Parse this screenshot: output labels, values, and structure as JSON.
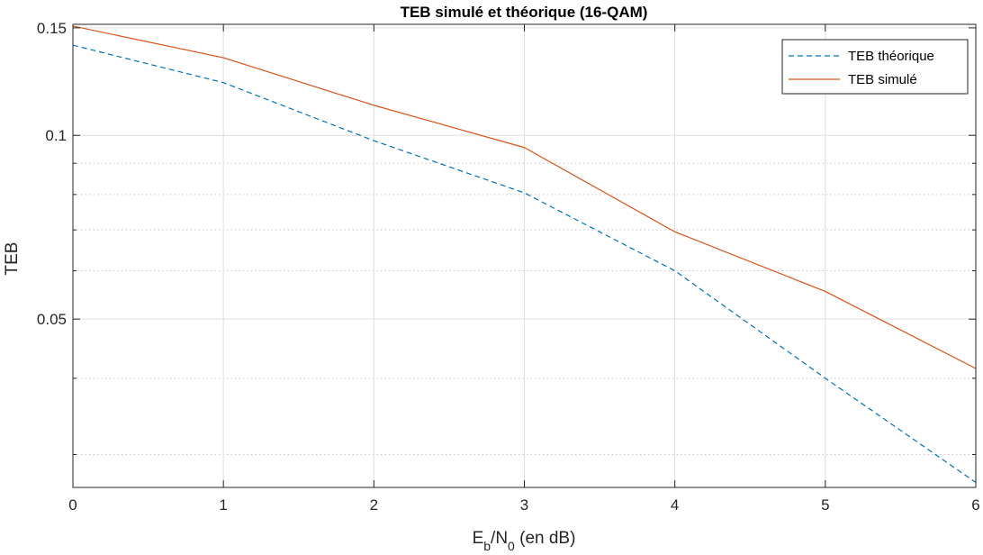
{
  "chart_data": {
    "type": "line",
    "title": "TEB simulé et théorique (16-QAM)",
    "xlabel": {
      "E": "E",
      "b": "b",
      "slash": "/N",
      "zero": "0",
      "rest": " (en dB)"
    },
    "ylabel": "TEB",
    "xlim": [
      0,
      6
    ],
    "ylim": [
      0.0265,
      0.152
    ],
    "yscale": "log",
    "grid": true,
    "legend_position": "top-right",
    "x_ticks": [
      0,
      1,
      2,
      3,
      4,
      5,
      6
    ],
    "x_tick_labels": [
      "0",
      "1",
      "2",
      "3",
      "4",
      "5",
      "6"
    ],
    "y_ticks": [
      0.05,
      0.1,
      0.15
    ],
    "y_tick_labels": [
      "0.05",
      "0.1",
      "0.15"
    ],
    "y_minor_ticks": [
      0.03,
      0.04,
      0.06,
      0.07,
      0.08,
      0.09
    ],
    "x": [
      0,
      1,
      2,
      3,
      4,
      5,
      6
    ],
    "series": [
      {
        "name": "TEB théorique",
        "values": [
          0.1405,
          0.122,
          0.098,
          0.0805,
          0.06,
          0.04,
          0.027
        ],
        "color": "#0072BD",
        "style": "dashed"
      },
      {
        "name": "TEB simulé",
        "values": [
          0.151,
          0.134,
          0.112,
          0.0955,
          0.0695,
          0.0555,
          0.0415
        ],
        "color": "#D95319",
        "style": "solid"
      }
    ]
  }
}
